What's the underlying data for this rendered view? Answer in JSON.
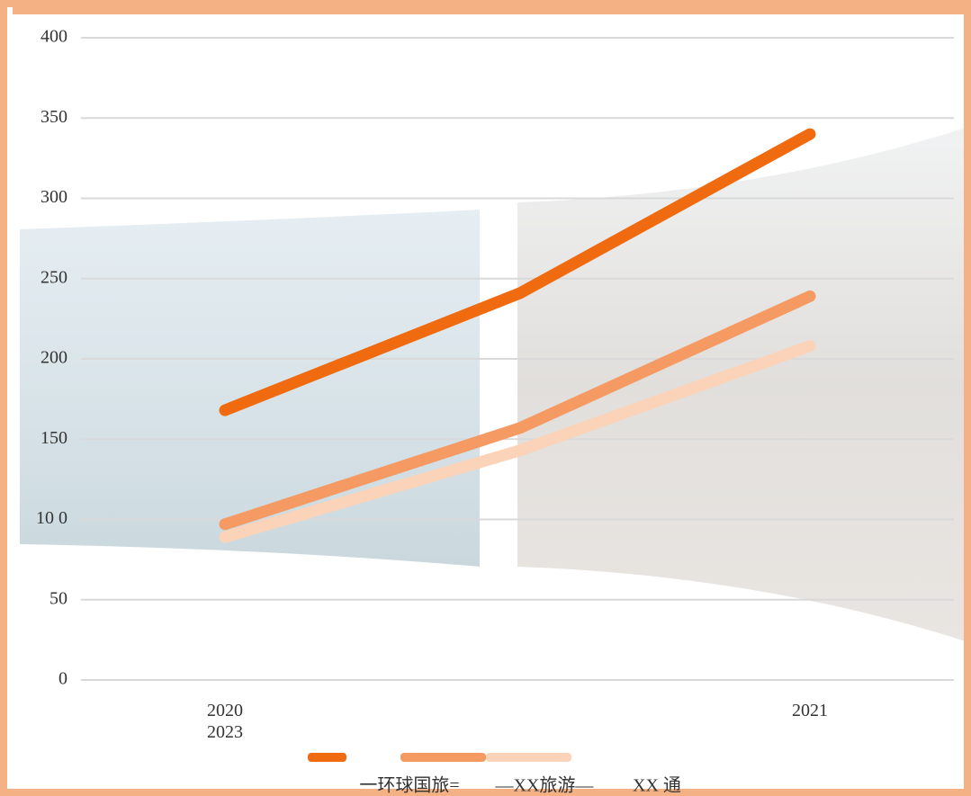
{
  "chart_data": {
    "type": "line",
    "categories": [
      "2020\n2023",
      null,
      "2021"
    ],
    "series": [
      {
        "name": "一环球国旅=",
        "color": "#f06a10",
        "values": [
          168,
          241,
          340
        ]
      },
      {
        "name": "—XX旅游—",
        "color": "#f59a63",
        "values": [
          97,
          157,
          239
        ]
      },
      {
        "name": "XX 通",
        "color": "#fbd3b8",
        "values": [
          89,
          143,
          208
        ]
      }
    ],
    "ylim": [
      0,
      400
    ],
    "yticks": [
      0,
      50,
      {
        "value": 100,
        "label": "10 0"
      },
      150,
      200,
      250,
      300,
      350,
      400
    ],
    "grid": true
  }
}
